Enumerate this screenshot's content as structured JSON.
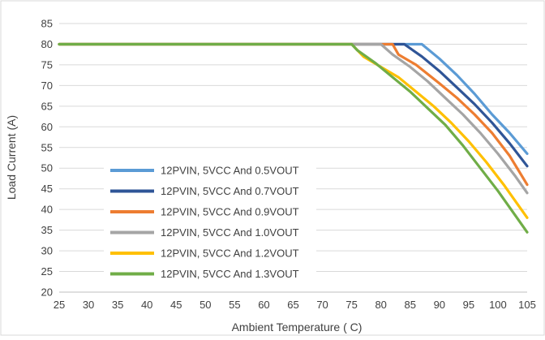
{
  "chart_data": {
    "type": "line",
    "title": "",
    "xlabel": "Ambient Temperature ( C)",
    "ylabel": "Load Current (A)",
    "xlim": [
      25,
      105
    ],
    "ylim": [
      20,
      85
    ],
    "x_ticks": [
      "25",
      "30",
      "35",
      "40",
      "45",
      "50",
      "55",
      "60",
      "65",
      "70",
      "75",
      "80",
      "85",
      "90",
      "95",
      "100",
      "105"
    ],
    "y_ticks": [
      "20",
      "25",
      "30",
      "35",
      "40",
      "45",
      "50",
      "55",
      "60",
      "65",
      "70",
      "75",
      "80",
      "85"
    ],
    "grid": "horizontal",
    "legend_position": "lower-left",
    "series": [
      {
        "name": "12PVIN, 5VCC And 0.5VOUT",
        "color": "#5B9BD5",
        "x": [
          25,
          75,
          87,
          90,
          93,
          96,
          99,
          102,
          105
        ],
        "y": [
          80,
          80,
          80,
          76.5,
          72.5,
          68,
          63,
          58.5,
          53.5
        ]
      },
      {
        "name": "12PVIN, 5VCC And 0.7VOUT",
        "color": "#2F5597",
        "x": [
          25,
          75,
          84,
          87,
          90,
          93,
          96,
          99,
          102,
          105
        ],
        "y": [
          80,
          80,
          80,
          77,
          73.5,
          69.5,
          65.5,
          61,
          56,
          50.5
        ]
      },
      {
        "name": "12PVIN, 5VCC And 0.9VOUT",
        "color": "#ED7D31",
        "x": [
          25,
          75,
          82,
          83,
          86,
          90,
          93,
          96,
          99,
          102,
          105
        ],
        "y": [
          80,
          80,
          80,
          77.5,
          75,
          70.5,
          67,
          63,
          58.5,
          53,
          46
        ]
      },
      {
        "name": "12PVIN, 5VCC And 1.0VOUT",
        "color": "#A5A5A5",
        "x": [
          25,
          75,
          80,
          82,
          85,
          88,
          91,
          94,
          97,
          100,
          103,
          105
        ],
        "y": [
          80,
          80,
          80,
          77.5,
          74.5,
          71,
          67,
          63,
          58.5,
          53.5,
          48,
          44
        ]
      },
      {
        "name": "12PVIN, 5VCC And 1.2VOUT",
        "color": "#FFC000",
        "x": [
          25,
          75,
          77,
          80,
          83,
          86,
          89,
          92,
          95,
          98,
          101,
          104,
          105
        ],
        "y": [
          80,
          80,
          77,
          74.5,
          72,
          68.5,
          65,
          61,
          56.5,
          51.5,
          46,
          40,
          38
        ]
      },
      {
        "name": "12PVIN, 5VCC And 1.3VOUT",
        "color": "#70AD47",
        "x": [
          25,
          75,
          76,
          79,
          82,
          85,
          88,
          91,
          94,
          97,
          100,
          103,
          105
        ],
        "y": [
          80,
          80,
          78.5,
          75.5,
          72,
          68.5,
          64.5,
          60.5,
          55.5,
          50,
          44.5,
          38.5,
          34.5
        ]
      }
    ]
  }
}
